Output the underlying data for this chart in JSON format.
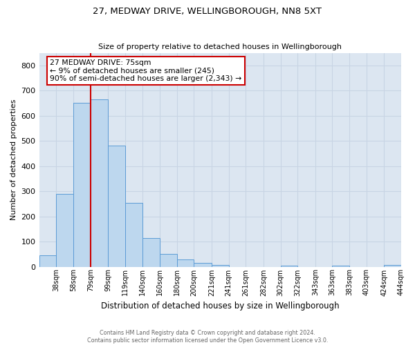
{
  "title": "27, MEDWAY DRIVE, WELLINGBOROUGH, NN8 5XT",
  "subtitle": "Size of property relative to detached houses in Wellingborough",
  "xlabel": "Distribution of detached houses by size in Wellingborough",
  "ylabel": "Number of detached properties",
  "bin_labels": [
    "38sqm",
    "58sqm",
    "79sqm",
    "99sqm",
    "119sqm",
    "140sqm",
    "160sqm",
    "180sqm",
    "200sqm",
    "221sqm",
    "241sqm",
    "261sqm",
    "282sqm",
    "302sqm",
    "322sqm",
    "343sqm",
    "363sqm",
    "383sqm",
    "403sqm",
    "424sqm",
    "444sqm"
  ],
  "bar_heights": [
    45,
    290,
    650,
    665,
    480,
    255,
    115,
    50,
    28,
    15,
    8,
    0,
    0,
    0,
    5,
    0,
    0,
    5,
    0,
    0,
    7
  ],
  "bar_color": "#bdd7ee",
  "bar_edge_color": "#5b9bd5",
  "grid_color": "#c8d4e4",
  "bg_color": "#dce6f1",
  "vline_x": 79,
  "vline_color": "#cc0000",
  "annotation_title": "27 MEDWAY DRIVE: 75sqm",
  "annotation_line1": "← 9% of detached houses are smaller (245)",
  "annotation_line2": "90% of semi-detached houses are larger (2,343) →",
  "annotation_box_color": "#cc0000",
  "footer1": "Contains HM Land Registry data © Crown copyright and database right 2024.",
  "footer2": "Contains public sector information licensed under the Open Government Licence v3.0.",
  "ylim": [
    0,
    850
  ],
  "yticks": [
    0,
    100,
    200,
    300,
    400,
    500,
    600,
    700,
    800
  ],
  "bin_edges": [
    18,
    38,
    58,
    79,
    99,
    119,
    140,
    160,
    180,
    200,
    221,
    241,
    261,
    282,
    302,
    322,
    343,
    363,
    383,
    403,
    424,
    444
  ]
}
